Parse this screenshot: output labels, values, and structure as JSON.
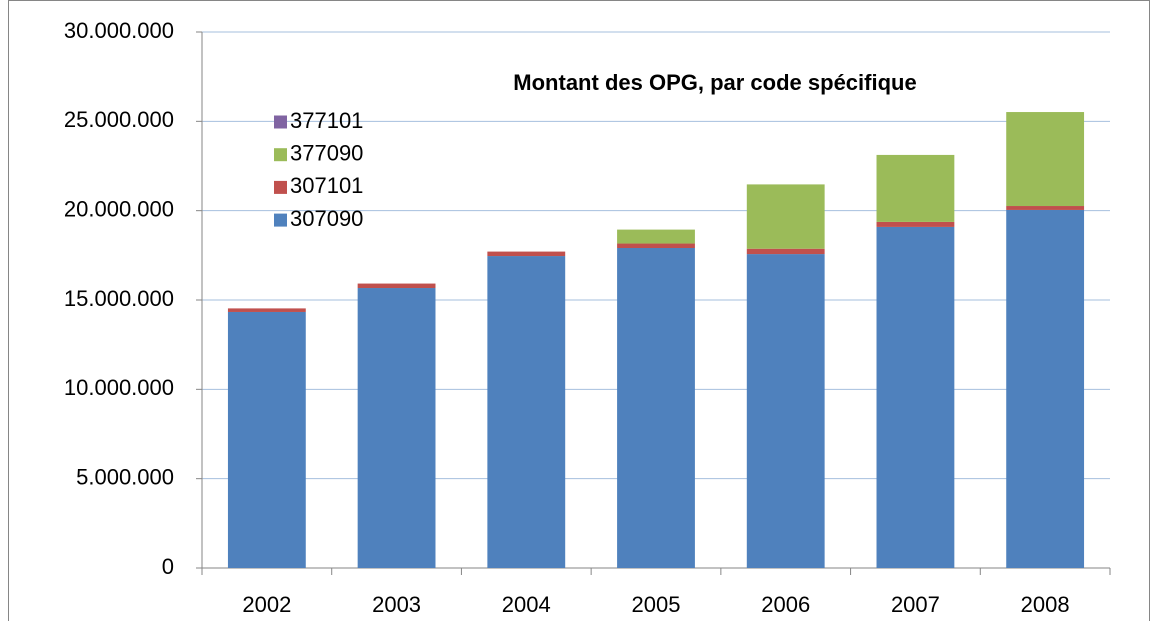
{
  "chart_data": {
    "type": "stacked_bar",
    "title": "Montant des OPG, par code spécifique",
    "categories": [
      "2002",
      "2003",
      "2004",
      "2005",
      "2006",
      "2007",
      "2008"
    ],
    "series": [
      {
        "name": "307090",
        "color": "#4f81bd",
        "values": [
          14330000,
          15670000,
          17460000,
          17910000,
          17570000,
          19090000,
          20040000
        ]
      },
      {
        "name": "307101",
        "color": "#c0504d",
        "values": [
          200000,
          250000,
          250000,
          250000,
          300000,
          280000,
          220000
        ]
      },
      {
        "name": "377090",
        "color": "#9bbb59",
        "values": [
          0,
          0,
          0,
          780000,
          3600000,
          3750000,
          5260000
        ]
      },
      {
        "name": "377101",
        "color": "#8064a2",
        "values": [
          0,
          0,
          0,
          0,
          0,
          0,
          0
        ]
      }
    ],
    "ylim": [
      0,
      30000000
    ],
    "yticks": [
      0,
      {
        "value": 5000000,
        "label": "5.000.000"
      },
      {
        "value": 10000000,
        "label": "10.000.000"
      },
      {
        "value": 15000000,
        "label": "15.000.000"
      },
      {
        "value": 20000000,
        "label": "20.000.000"
      },
      {
        "value": 25000000,
        "label": "25.000.000"
      },
      {
        "value": 30000000,
        "label": "30.000.000"
      }
    ],
    "grid": true,
    "legend": "top-left"
  }
}
